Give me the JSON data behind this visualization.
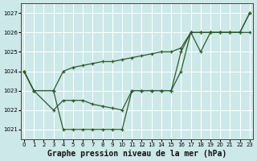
{
  "title": "Graphe pression niveau de la mer (hPa)",
  "bg_color": "#cce8e8",
  "grid_color": "#ffffff",
  "line_color": "#2d5a2d",
  "ylim": [
    1020.5,
    1027.5
  ],
  "xlim": [
    -0.3,
    23.3
  ],
  "yticks": [
    1021,
    1022,
    1023,
    1024,
    1025,
    1026,
    1027
  ],
  "xticks": [
    0,
    1,
    2,
    3,
    4,
    5,
    6,
    7,
    8,
    9,
    10,
    11,
    12,
    13,
    14,
    15,
    16,
    17,
    18,
    19,
    20,
    21,
    22,
    23
  ],
  "line1_x": [
    0,
    1,
    3,
    4,
    5,
    6,
    7,
    8,
    9,
    10,
    11,
    12,
    13,
    14,
    15,
    16,
    17,
    18,
    19,
    20,
    21,
    22,
    23
  ],
  "line1_y": [
    1024,
    1023,
    1023,
    1024.0,
    1024.2,
    1024.3,
    1024.4,
    1024.5,
    1024.5,
    1024.6,
    1024.7,
    1024.8,
    1024.9,
    1025.0,
    1025.0,
    1025.2,
    1026,
    1026,
    1026,
    1026,
    1026,
    1026,
    1027
  ],
  "line2_x": [
    0,
    1,
    3,
    4,
    5,
    6,
    7,
    8,
    9,
    10,
    11,
    12,
    13,
    14,
    15,
    16,
    17,
    18,
    19,
    20,
    21,
    22,
    23
  ],
  "line2_y": [
    1024,
    1023,
    1022,
    1022.5,
    1022.5,
    1022.5,
    1022.3,
    1022.2,
    1022.1,
    1022,
    1023,
    1023,
    1023,
    1023,
    1023,
    1025,
    1026,
    1025,
    1026,
    1026,
    1026,
    1026,
    1026
  ],
  "line3_x": [
    0,
    1,
    3,
    4,
    5,
    6,
    7,
    8,
    9,
    10,
    11,
    12,
    13,
    14,
    15,
    16,
    17,
    18,
    19,
    20,
    21,
    22,
    23
  ],
  "line3_y": [
    1024,
    1023,
    1023,
    1021,
    1021,
    1021,
    1021,
    1021,
    1021,
    1021,
    1023,
    1023,
    1023,
    1023,
    1023,
    1024,
    1026,
    1026,
    1026,
    1026,
    1026,
    1026,
    1027
  ],
  "title_fontsize": 7.0
}
